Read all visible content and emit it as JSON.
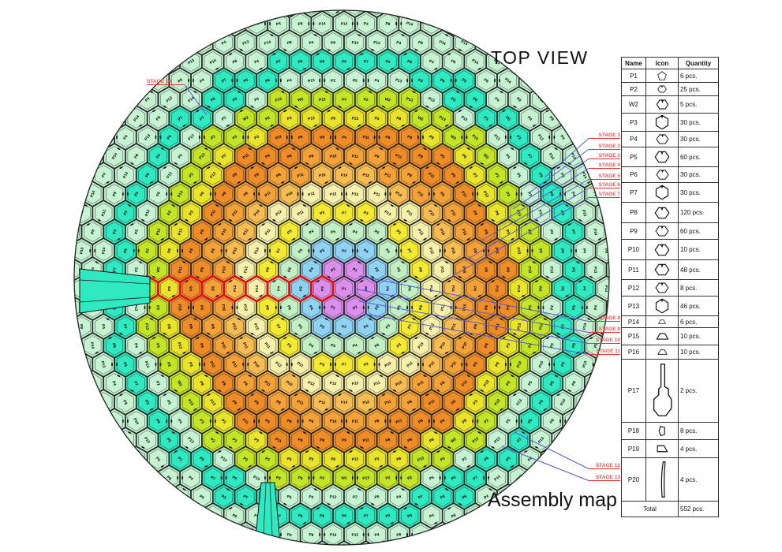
{
  "title": "TOP VIEW",
  "subtitle": "Assembly map",
  "colors": {
    "circle_fill": "#d9f6e3",
    "outline": "#1a1a1a",
    "red_row": "#e31212",
    "stage_text": "#f25050",
    "stage_underline": "#e03030",
    "leader_line": "#5858d8",
    "wedge_fill": "#2fe9c0"
  },
  "map": {
    "bands": [
      {
        "r": 44,
        "color": "#d98feb",
        "labels": [
          "P1",
          "P2"
        ]
      },
      {
        "r": 63,
        "color": "#8fd2f2",
        "labels": [
          "P3",
          "P2",
          "P4"
        ]
      },
      {
        "r": 86,
        "color": "#c2f0c4",
        "labels": [
          "P5",
          "P4",
          "P6"
        ]
      },
      {
        "r": 106,
        "color": "#f4ea34",
        "labels": [
          "P7",
          "P3",
          "P8"
        ]
      },
      {
        "r": 127,
        "color": "#f7f0aa",
        "labels": [
          "P13",
          "P11",
          "P12"
        ]
      },
      {
        "r": 152,
        "color": "#f7bc52",
        "labels": [
          "P12",
          "P11",
          "P10"
        ]
      },
      {
        "r": 181,
        "color": "#f4a238",
        "labels": [
          "P8",
          "P10",
          "P11"
        ]
      },
      {
        "r": 210,
        "color": "#ee8c28",
        "labels": [
          "P8",
          "P9",
          "P11"
        ]
      },
      {
        "r": 232,
        "color": "#eae32b",
        "labels": [
          "P8",
          "P13",
          "P3"
        ]
      },
      {
        "r": 254,
        "color": "#c3e427",
        "labels": [
          "P3",
          "P13",
          "W2",
          "P2"
        ]
      },
      {
        "r": 277,
        "color": "#c6f3d2",
        "labels": [
          "P4",
          "P5",
          "P2",
          "P13"
        ]
      },
      {
        "r": 305,
        "color": "#2fe9c0",
        "labels": [
          "P6",
          "P3",
          "P7",
          "P5"
        ]
      },
      {
        "r": 9999,
        "color": "#c6f3d2",
        "labels": [
          "P14",
          "P8",
          "P4",
          "P13"
        ]
      }
    ]
  },
  "stages": [
    {
      "label": "STAGE 1"
    },
    {
      "label": "STAGE 2"
    },
    {
      "label": "STAGE 3"
    },
    {
      "label": "STAGE 4"
    },
    {
      "label": "STAGE 5"
    },
    {
      "label": "STAGE 6"
    },
    {
      "label": "STAGE 7"
    },
    {
      "label": "STAGE 8"
    },
    {
      "label": "STAGE 9"
    },
    {
      "label": "STAGE 10"
    },
    {
      "label": "STAGE 11"
    },
    {
      "label": "STAGE 12"
    },
    {
      "label": "STAGE 13"
    },
    {
      "label": "STAGE 14"
    }
  ],
  "legend": {
    "headers": [
      "Name",
      "Icon",
      "Quantity"
    ],
    "parts": [
      {
        "name": "P1",
        "icon": "pentagon",
        "qty": "6 pcs."
      },
      {
        "name": "P2",
        "icon": "hex-small",
        "qty": "25 pcs."
      },
      {
        "name": "W2",
        "icon": "hex-small",
        "qty": "5 pcs."
      },
      {
        "name": "P3",
        "icon": "hex-tall",
        "qty": "30 pcs."
      },
      {
        "name": "P4",
        "icon": "hex-wide",
        "qty": "30 pcs."
      },
      {
        "name": "P5",
        "icon": "hex-wide",
        "qty": "60 pcs."
      },
      {
        "name": "P6",
        "icon": "hex-wide",
        "qty": "30 pcs."
      },
      {
        "name": "P7",
        "icon": "hex-tall",
        "qty": "30 pcs."
      },
      {
        "name": "P8",
        "icon": "hex-wide",
        "qty": "120 pcs."
      },
      {
        "name": "P9",
        "icon": "hex-wide",
        "qty": "60 pcs."
      },
      {
        "name": "P10",
        "icon": "hex-wide",
        "qty": "10 pcs."
      },
      {
        "name": "P11",
        "icon": "hex-wide",
        "qty": "48 pcs."
      },
      {
        "name": "P12",
        "icon": "hex-wide",
        "qty": "8 pcs."
      },
      {
        "name": "P13",
        "icon": "hex-tall",
        "qty": "46 pcs."
      },
      {
        "name": "P14",
        "icon": "trapezoid",
        "qty": "6 pcs."
      },
      {
        "name": "P15",
        "icon": "trapezoid",
        "qty": "10 pcs."
      },
      {
        "name": "P16",
        "icon": "trapezoid",
        "qty": "10 pcs."
      },
      {
        "name": "P17",
        "icon": "bracket",
        "qty": "2 pcs."
      },
      {
        "name": "P18",
        "icon": "chip",
        "qty": "8 pcs."
      },
      {
        "name": "P19",
        "icon": "quad",
        "qty": "4 pcs."
      },
      {
        "name": "P20",
        "icon": "blade",
        "qty": "4 pcs."
      }
    ],
    "total_label": "Total",
    "total_qty": "552 pcs."
  }
}
